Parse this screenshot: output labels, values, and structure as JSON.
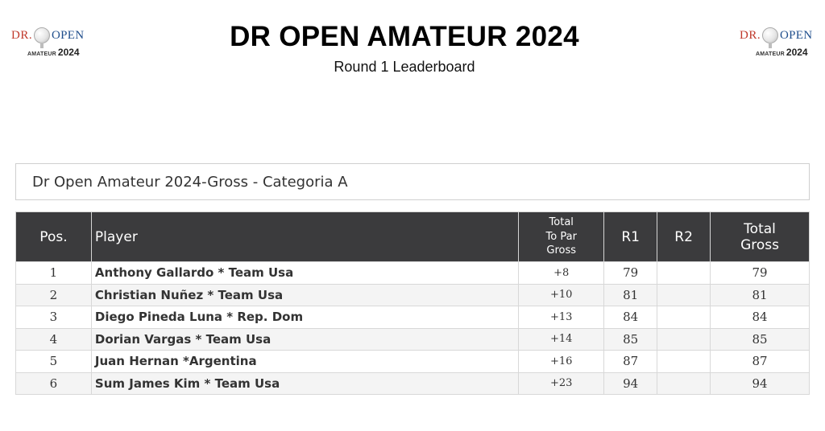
{
  "header": {
    "title": "DR OPEN AMATEUR 2024",
    "subtitle": "Round 1 Leaderboard",
    "logo": {
      "brand_left": "DR.",
      "brand_right": "OPEN",
      "amateur": "AMATEUR",
      "year": "2024",
      "colors": {
        "dr": "#c0392b",
        "open": "#1f4e8c"
      }
    }
  },
  "category": {
    "label": "Dr Open Amateur 2024-Gross - Categoria A"
  },
  "table": {
    "columns": {
      "pos": "Pos.",
      "player": "Player",
      "to_par_line1": "Total",
      "to_par_line2": "To Par",
      "to_par_line3": "Gross",
      "r1": "R1",
      "r2": "R2",
      "total_line1": "Total",
      "total_line2": "Gross"
    },
    "rows": [
      {
        "pos": "1",
        "player": "Anthony Gallardo * Team Usa",
        "to_par": "+8",
        "r1": "79",
        "r2": "",
        "total": "79"
      },
      {
        "pos": "2",
        "player": "Christian Nuñez * Team Usa",
        "to_par": "+10",
        "r1": "81",
        "r2": "",
        "total": "81"
      },
      {
        "pos": "3",
        "player": "Diego Pineda Luna * Rep. Dom",
        "to_par": "+13",
        "r1": "84",
        "r2": "",
        "total": "84"
      },
      {
        "pos": "4",
        "player": "Dorian Vargas * Team Usa",
        "to_par": "+14",
        "r1": "85",
        "r2": "",
        "total": "85"
      },
      {
        "pos": "5",
        "player": "Juan Hernan *Argentina",
        "to_par": "+16",
        "r1": "87",
        "r2": "",
        "total": "87"
      },
      {
        "pos": "6",
        "player": "Sum James Kim * Team Usa",
        "to_par": "+23",
        "r1": "94",
        "r2": "",
        "total": "94"
      }
    ],
    "header_bg": "#3b3b3d"
  }
}
